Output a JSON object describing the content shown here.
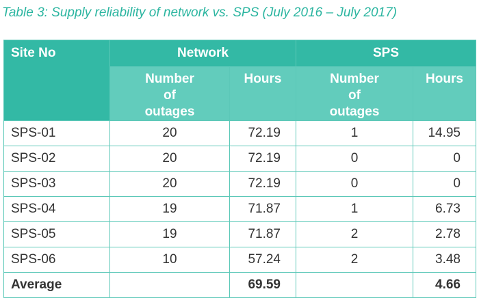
{
  "title": "Table 3: Supply reliability of network vs. SPS (July 2016 – July 2017)",
  "header": {
    "site_no": "Site No",
    "network": "Network",
    "sps": "SPS",
    "sub": [
      "Number of outages",
      "Hours",
      "Number of outages",
      "Hours"
    ]
  },
  "rows": [
    [
      "SPS-01",
      "20",
      "72.19",
      "1",
      "14.95"
    ],
    [
      "SPS-02",
      "20",
      "72.19",
      "0",
      "0"
    ],
    [
      "SPS-03",
      "20",
      "72.19",
      "0",
      "0"
    ],
    [
      "SPS-04",
      "19",
      "71.87",
      "1",
      "6.73"
    ],
    [
      "SPS-05",
      "19",
      "71.87",
      "2",
      "2.78"
    ],
    [
      "SPS-06",
      "10",
      "57.24",
      "2",
      "3.48"
    ]
  ],
  "average": {
    "label": "Average",
    "network_hours": "69.59",
    "sps_hours": "4.66"
  }
}
